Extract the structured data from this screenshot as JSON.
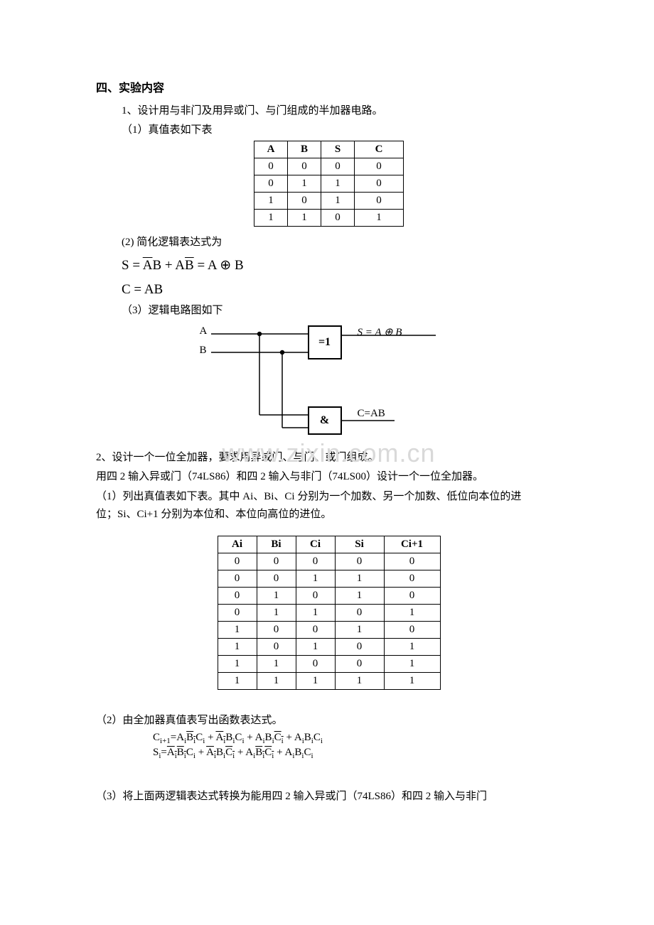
{
  "section_title": "四、实验内容",
  "part1": {
    "heading": "1、设计用与非门及用异或门、与门组成的半加器电路。",
    "sub1": "（1）真值表如下表",
    "table": {
      "columns": [
        "A",
        "B",
        "S",
        "C"
      ],
      "rows": [
        [
          "0",
          "0",
          "0",
          "0"
        ],
        [
          "0",
          "1",
          "1",
          "0"
        ],
        [
          "1",
          "0",
          "1",
          "0"
        ],
        [
          "1",
          "1",
          "0",
          "1"
        ]
      ]
    },
    "sub2": "(2) 简化逻辑表达式为",
    "eq_S_prefix": "S = ",
    "eq_S_t1_bar": "A",
    "eq_S_t1_after": "B + A",
    "eq_S_t2_bar": "B",
    "eq_S_suffix": " = A ⊕ B",
    "eq_C": "C = AB",
    "sub3": "（3）逻辑电路图如下",
    "circuit": {
      "labelA": "A",
      "labelB": "B",
      "gate1_symbol": "=1",
      "gate2_symbol": "&",
      "out_S": "S = A ⊕ B",
      "out_C": "C=AB",
      "line_color": "#000000",
      "line_width": 1.5
    }
  },
  "watermark_text": "www.zixin.com.cn",
  "part2": {
    "heading": "2、设计一个一位全加器，要求用异或门、与门、或门组成。",
    "intro": "用四 2 输入异或门（74LS86）和四 2 输入与非门（74LS00）设计一个一位全加器。",
    "sub1a": "（1）列出真值表如下表。其中 Ai、Bi、Ci 分别为一个加数、另一个加数、低位向本位的进",
    "sub1b": "位；Si、Ci+1 分别为本位和、本位向高位的进位。",
    "table": {
      "columns": [
        "Ai",
        "Bi",
        "Ci",
        "Si",
        "Ci+1"
      ],
      "rows": [
        [
          "0",
          "0",
          "0",
          "0",
          "0"
        ],
        [
          "0",
          "0",
          "1",
          "1",
          "0"
        ],
        [
          "0",
          "1",
          "0",
          "1",
          "0"
        ],
        [
          "0",
          "1",
          "1",
          "0",
          "1"
        ],
        [
          "1",
          "0",
          "0",
          "1",
          "0"
        ],
        [
          "1",
          "0",
          "1",
          "0",
          "1"
        ],
        [
          "1",
          "1",
          "0",
          "0",
          "1"
        ],
        [
          "1",
          "1",
          "1",
          "1",
          "1"
        ]
      ]
    },
    "sub2": "（2）由全加器真值表写出函数表达式。",
    "eq_C_label": "C",
    "eq_C_sub": "i+1",
    "eq_C_eq": "=A",
    "eq_S_label": "S",
    "eq_S_sub": "i",
    "eq_S_eq": "=",
    "term_Ai": "A",
    "term_Bi": "B",
    "term_Ci": "C",
    "sub_i": "i",
    "plus": " + ",
    "sub3": "（3）将上面两逻辑表达式转换为能用四 2 输入异或门（74LS86）和四 2 输入与非门"
  }
}
